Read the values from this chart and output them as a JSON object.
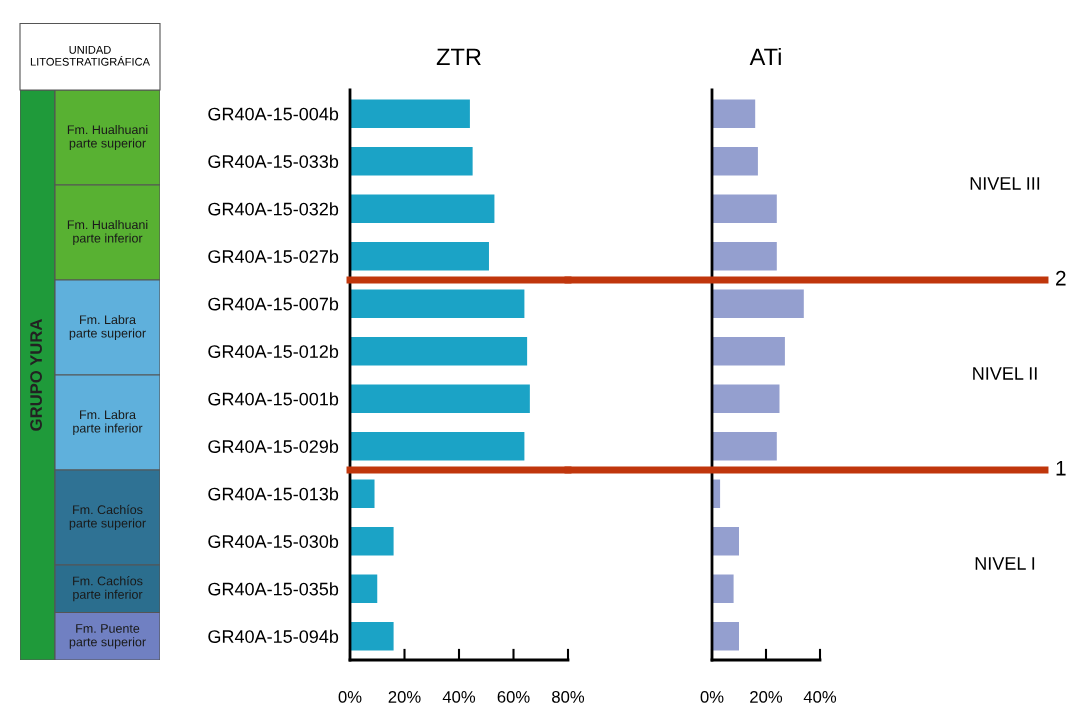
{
  "chart_data": [
    {
      "type": "other",
      "title": "UNIDAD\nLITOESTRATIGRÁFICA",
      "annotations": [
        "GRUPO YURA"
      ],
      "categories": [
        "Fm. Hualhuani\nparte superior",
        null,
        "Fm. Hualhuani\nparte inferior",
        null,
        "Fm. Labra\nparte superior",
        null,
        "Fm. Labra\nparte inferior",
        null,
        "Fm. Cachíos\nparte superior",
        null,
        "Fm. Cachíos\nparte inferior",
        "Fm. Puente\nparte superior"
      ],
      "colors": [
        "#58b132",
        "#58b132",
        "#58b132",
        "#58b132",
        "#5fb0dc",
        "#5fb0dc",
        "#5fb0dc",
        "#5fb0dc",
        "#2f7294",
        "#2f7294",
        "#2b6e8e",
        "#7080c2"
      ]
    },
    {
      "type": "bar",
      "orientation": "horizontal",
      "title": "ZTR",
      "categories": [
        "GR40A-15-004b",
        "GR40A-15-033b",
        "GR40A-15-032b",
        "GR40A-15-027b",
        "GR40A-15-007b",
        "GR40A-15-012b",
        "GR40A-15-001b",
        "GR40A-15-029b",
        "GR40A-15-013b",
        "GR40A-15-030b",
        "GR40A-15-035b",
        "GR40A-15-094b"
      ],
      "values": [
        44,
        45,
        53,
        51,
        64,
        65,
        66,
        64,
        9,
        16,
        10,
        16
      ],
      "color": "#1ba3c6",
      "xlim": [
        0,
        80
      ],
      "xticks": [
        {
          "value": 0,
          "label": "0%"
        },
        {
          "value": 20,
          "label": "20%"
        },
        {
          "value": 40,
          "label": "40%"
        },
        {
          "value": 60,
          "label": "60%"
        },
        {
          "value": 80,
          "label": "80%"
        }
      ],
      "grid": false,
      "legend": false
    },
    {
      "type": "bar",
      "orientation": "horizontal",
      "title": "ATi",
      "tick_labels": "x",
      "categories": [
        null,
        null,
        null,
        null,
        null,
        null,
        null,
        null,
        null,
        null,
        null,
        null
      ],
      "values": [
        16,
        17,
        24,
        24,
        34,
        27,
        25,
        24,
        3,
        10,
        8,
        10
      ],
      "color": "#949fcf",
      "xlim": [
        0,
        40
      ],
      "xticks": [
        {
          "value": 0,
          "label": "0%"
        },
        {
          "value": 20,
          "label": "20%"
        },
        {
          "value": 40,
          "label": "40%"
        }
      ],
      "annotations": [
        "NIVEL III",
        "2",
        "NIVEL II",
        "1",
        "NIVEL I"
      ],
      "grid": false,
      "legend": false
    }
  ]
}
